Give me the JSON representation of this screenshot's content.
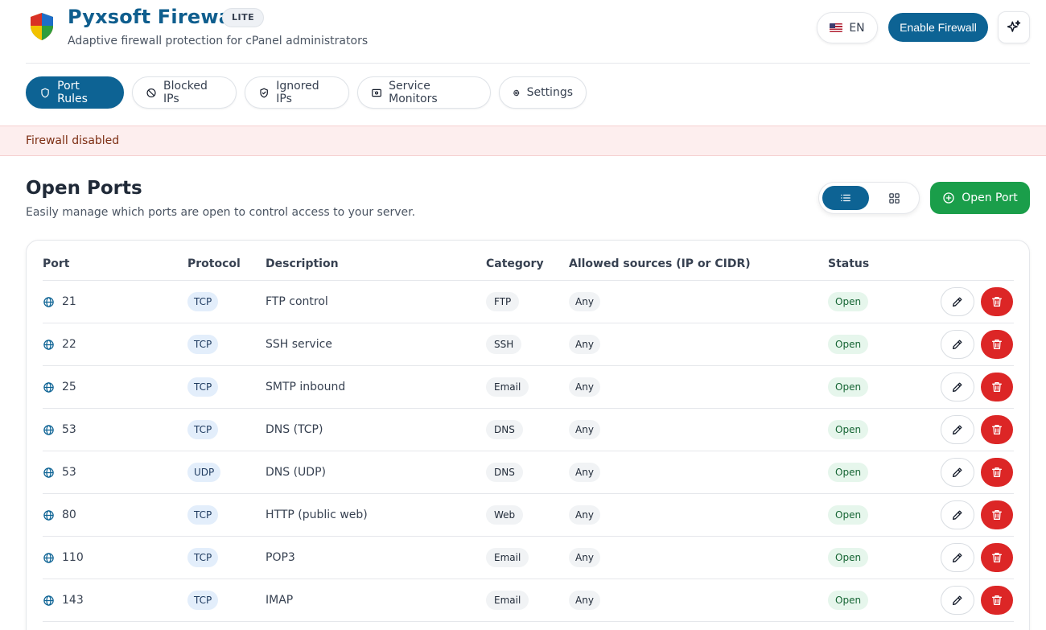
{
  "header": {
    "title": "Pyxsoft Firewall",
    "badge": "LITE",
    "subtitle": "Adaptive firewall protection for cPanel administrators",
    "language": "EN",
    "language_icon": "us-flag-icon",
    "enable_button": "Enable Firewall",
    "ai_icon": "sparkles-icon"
  },
  "tabs": [
    {
      "label": "Port Rules",
      "icon": "shield-icon",
      "active": true
    },
    {
      "label": "Blocked IPs",
      "icon": "ban-icon",
      "active": false
    },
    {
      "label": "Ignored IPs",
      "icon": "shield-check-icon",
      "active": false
    },
    {
      "label": "Service Monitors",
      "icon": "monitor-icon",
      "active": false
    },
    {
      "label": "Settings",
      "icon": "gear-icon",
      "active": false
    }
  ],
  "alert": {
    "text": "Firewall disabled"
  },
  "section": {
    "title": "Open Ports",
    "description": "Easily manage which ports are open to control access to your server.",
    "view_mode": "list",
    "open_port_button": "Open Port"
  },
  "table": {
    "columns": [
      "Port",
      "Protocol",
      "Description",
      "Category",
      "Allowed sources (IP or CIDR)",
      "Status"
    ],
    "rows": [
      {
        "port": "21",
        "protocol": "TCP",
        "description": "FTP control",
        "category": "FTP",
        "sources": "Any",
        "status": "Open"
      },
      {
        "port": "22",
        "protocol": "TCP",
        "description": "SSH service",
        "category": "SSH",
        "sources": "Any",
        "status": "Open"
      },
      {
        "port": "25",
        "protocol": "TCP",
        "description": "SMTP inbound",
        "category": "Email",
        "sources": "Any",
        "status": "Open"
      },
      {
        "port": "53",
        "protocol": "TCP",
        "description": "DNS (TCP)",
        "category": "DNS",
        "sources": "Any",
        "status": "Open"
      },
      {
        "port": "53",
        "protocol": "UDP",
        "description": "DNS (UDP)",
        "category": "DNS",
        "sources": "Any",
        "status": "Open"
      },
      {
        "port": "80",
        "protocol": "TCP",
        "description": "HTTP (public web)",
        "category": "Web",
        "sources": "Any",
        "status": "Open"
      },
      {
        "port": "110",
        "protocol": "TCP",
        "description": "POP3",
        "category": "Email",
        "sources": "Any",
        "status": "Open"
      },
      {
        "port": "143",
        "protocol": "TCP",
        "description": "IMAP",
        "category": "Email",
        "sources": "Any",
        "status": "Open"
      }
    ]
  },
  "colors": {
    "primary": "#0d6394",
    "success": "#1a9e4a",
    "danger": "#dc2626",
    "alert_bg": "#fdeeee"
  }
}
